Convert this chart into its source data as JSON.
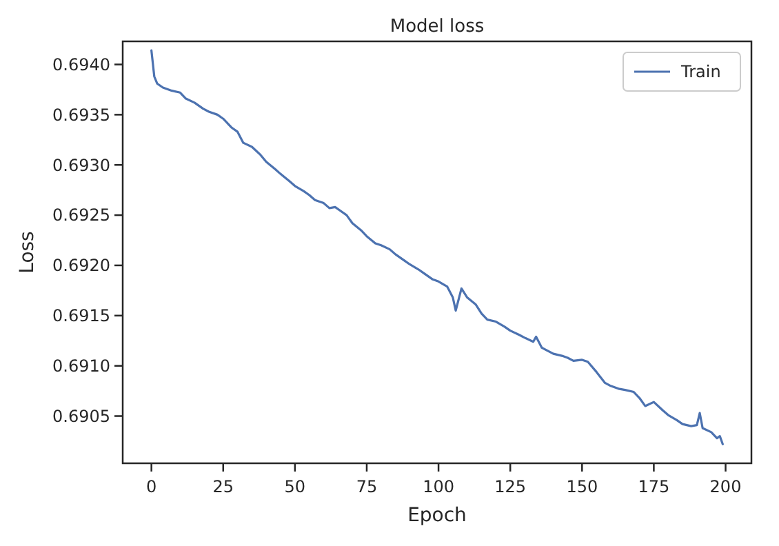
{
  "chart_data": {
    "type": "line",
    "title": "Model loss",
    "xlabel": "Epoch",
    "ylabel": "Loss",
    "x": [
      0,
      1,
      2,
      4,
      7,
      10,
      12,
      15,
      18,
      20,
      23,
      25,
      28,
      30,
      32,
      35,
      38,
      40,
      43,
      45,
      48,
      50,
      53,
      55,
      57,
      60,
      62,
      64,
      66,
      68,
      70,
      73,
      75,
      78,
      80,
      83,
      85,
      88,
      90,
      93,
      95,
      98,
      100,
      103,
      105,
      106,
      108,
      110,
      113,
      115,
      117,
      120,
      123,
      125,
      128,
      130,
      133,
      134,
      136,
      140,
      143,
      145,
      147,
      150,
      152,
      155,
      158,
      160,
      163,
      165,
      168,
      170,
      172,
      175,
      178,
      180,
      183,
      185,
      188,
      190,
      191,
      192,
      195,
      197,
      198,
      199
    ],
    "series": [
      {
        "name": "Train",
        "color": "#4c72b0",
        "values": [
          0.69414,
          0.69388,
          0.69381,
          0.69377,
          0.69374,
          0.69372,
          0.69366,
          0.69362,
          0.69356,
          0.69353,
          0.6935,
          0.69346,
          0.69337,
          0.69333,
          0.69322,
          0.69318,
          0.6931,
          0.69303,
          0.69296,
          0.69291,
          0.69284,
          0.69279,
          0.69274,
          0.6927,
          0.69265,
          0.69262,
          0.69257,
          0.69258,
          0.69254,
          0.6925,
          0.69242,
          0.69235,
          0.69229,
          0.69222,
          0.6922,
          0.69216,
          0.69211,
          0.69205,
          0.69201,
          0.69196,
          0.69192,
          0.69186,
          0.69184,
          0.69179,
          0.69168,
          0.69155,
          0.69177,
          0.69168,
          0.69161,
          0.69152,
          0.69146,
          0.69144,
          0.69139,
          0.69135,
          0.69131,
          0.69128,
          0.69124,
          0.69129,
          0.69118,
          0.69112,
          0.6911,
          0.69108,
          0.69105,
          0.69106,
          0.69104,
          0.69094,
          0.69083,
          0.6908,
          0.69077,
          0.69076,
          0.69074,
          0.69068,
          0.6906,
          0.69064,
          0.69056,
          0.69051,
          0.69046,
          0.69042,
          0.6904,
          0.69041,
          0.69053,
          0.69038,
          0.69034,
          0.69028,
          0.6903,
          0.69022
        ]
      }
    ],
    "xlim": [
      -10,
      209
    ],
    "ylim": [
      0.69003,
      0.69423
    ],
    "xticks": [
      0,
      25,
      50,
      75,
      100,
      125,
      150,
      175,
      200
    ],
    "yticks": [
      {
        "value": 0.6905,
        "label": "0.6905"
      },
      {
        "value": 0.691,
        "label": "0.6910"
      },
      {
        "value": 0.6915,
        "label": "0.6915"
      },
      {
        "value": 0.692,
        "label": "0.6920"
      },
      {
        "value": 0.6925,
        "label": "0.6925"
      },
      {
        "value": 0.693,
        "label": "0.6930"
      },
      {
        "value": 0.6935,
        "label": "0.6935"
      },
      {
        "value": 0.694,
        "label": "0.6940"
      }
    ],
    "legend": "top right",
    "grid": false,
    "line_style": "solid",
    "marker": "none"
  }
}
